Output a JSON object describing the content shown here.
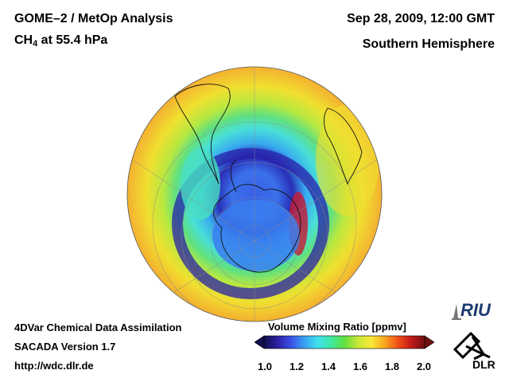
{
  "header": {
    "title_line1": "GOME–2 / MetOp Analysis",
    "species": "CH",
    "species_sub": "4",
    "species_rest": " at 55.4 hPa",
    "datetime": "Sep 28, 2009, 12:00 GMT",
    "region": "Southern Hemisphere"
  },
  "footer": {
    "line1": "4DVar Chemical Data Assimilation",
    "line2": "SACADA Version 1.7",
    "line3": "http://wdc.dlr.de"
  },
  "colorbar": {
    "title": "Volume Mixing Ratio [ppmv]",
    "min": 1.0,
    "max": 2.0,
    "ticks": [
      "1.0",
      "1.2",
      "1.4",
      "1.6",
      "1.8",
      "2.0"
    ],
    "colors": [
      "#10104e",
      "#2a1fa0",
      "#3a50e8",
      "#3aa0f0",
      "#40e0f0",
      "#40e8a0",
      "#60e040",
      "#c8e838",
      "#f8e838",
      "#f8a820",
      "#f05018",
      "#c01818",
      "#701010"
    ]
  },
  "logos": {
    "riu": "RIU",
    "dlr": "DLR"
  },
  "icons": {
    "riu_logo": "riu-logo-icon",
    "dlr_logo": "dlr-logo-icon"
  }
}
